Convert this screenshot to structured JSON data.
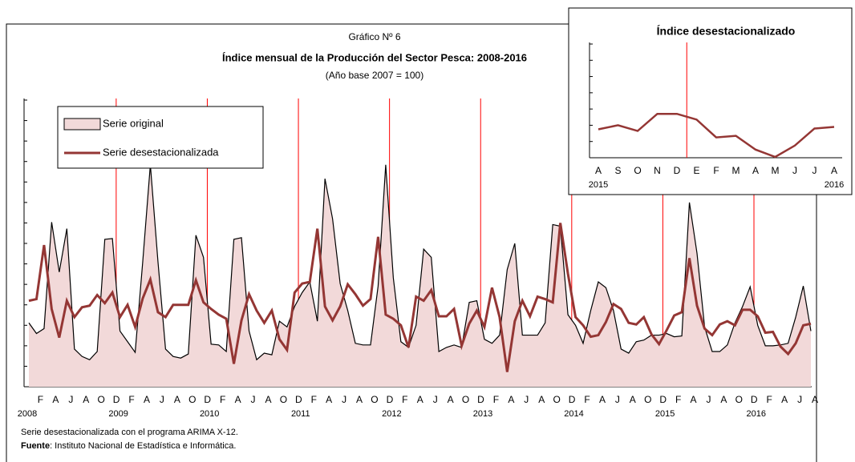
{
  "chart_data": [
    {
      "type": "line",
      "chart_label": "Gráfico Nº 6",
      "title": "Índice mensual de la Producción del Sector Pesca: 2008-2016",
      "subtitle": "(Año base  2007 = 100)",
      "categories": [
        null,
        "F",
        null,
        "A",
        null,
        "J",
        null,
        "A",
        null,
        "O",
        null,
        "D",
        null,
        "F",
        null,
        "A",
        null,
        "J",
        null,
        "A",
        null,
        "O",
        null,
        "D",
        null,
        "F",
        null,
        "A",
        null,
        "J",
        null,
        "A",
        null,
        "O",
        null,
        "D",
        null,
        "F",
        null,
        "A",
        null,
        "J",
        null,
        "A",
        null,
        "O",
        null,
        "D",
        null,
        "F",
        null,
        "A",
        null,
        "J",
        null,
        "A",
        null,
        "O",
        null,
        "D",
        null,
        "F",
        null,
        "A",
        null,
        "J",
        null,
        "A",
        null,
        "O",
        null,
        "D",
        null,
        "F",
        null,
        "A",
        null,
        "J",
        null,
        "A",
        null,
        "O",
        null,
        "D",
        null,
        "F",
        null,
        "A",
        null,
        "J",
        null,
        "A",
        null,
        "O",
        null,
        "D",
        null,
        "F",
        null,
        "A",
        null,
        "J",
        null,
        "A"
      ],
      "years": [
        "2008",
        "2009",
        "2010",
        "2011",
        "2012",
        "2013",
        "2014",
        "2015",
        "2016"
      ],
      "series": [
        {
          "name": "Serie original",
          "color": "#f2d9d9",
          "line_color": "#000000",
          "values": [
            78,
            65,
            71,
            201,
            140,
            193,
            46,
            37,
            33,
            43,
            180,
            181,
            68,
            55,
            42,
            153,
            271,
            153,
            46,
            37,
            35,
            40,
            185,
            158,
            52,
            51,
            43,
            180,
            182,
            68,
            33,
            41,
            39,
            80,
            73,
            98,
            115,
            128,
            80,
            254,
            205,
            126,
            93,
            53,
            51,
            51,
            123,
            271,
            133,
            55,
            48,
            75,
            168,
            158,
            43,
            48,
            51,
            48,
            103,
            105,
            58,
            53,
            63,
            143,
            175,
            63,
            63,
            63,
            78,
            198,
            196,
            88,
            75,
            53,
            93,
            128,
            121,
            93,
            46,
            41,
            55,
            57,
            63,
            63,
            65,
            61,
            62,
            225,
            163,
            73,
            43,
            43,
            51,
            78,
            98,
            122,
            75,
            50,
            50,
            51,
            53,
            85,
            123,
            68
          ]
        },
        {
          "name": "Serie desestacionalizada",
          "color": "#943634",
          "values": [
            105,
            107,
            173,
            95,
            60,
            105,
            85,
            97,
            99,
            112,
            102,
            115,
            85,
            100,
            73,
            108,
            131,
            91,
            85,
            100,
            100,
            100,
            130,
            103,
            95,
            88,
            83,
            28,
            81,
            113,
            93,
            78,
            93,
            58,
            45,
            115,
            126,
            128,
            193,
            98,
            81,
            98,
            125,
            113,
            99,
            107,
            183,
            88,
            83,
            75,
            48,
            110,
            105,
            118,
            86,
            86,
            95,
            50,
            77,
            93,
            73,
            121,
            85,
            18,
            80,
            105,
            86,
            110,
            107,
            103,
            200,
            138,
            85,
            75,
            61,
            63,
            79,
            101,
            95,
            78,
            76,
            85,
            64,
            52,
            69,
            87,
            91,
            157,
            99,
            71,
            63,
            76,
            80,
            75,
            94,
            94,
            86,
            66,
            67,
            49,
            40,
            53,
            75,
            77
          ]
        }
      ],
      "year_line_color": "#ff0000",
      "ylim": [
        0,
        350
      ],
      "yticks": [
        0,
        25,
        50,
        75,
        100,
        125,
        150,
        175,
        200,
        225,
        250,
        275,
        300,
        325,
        350
      ]
    },
    {
      "type": "line",
      "title": "Índice desestacionalizado",
      "categories": [
        "A",
        "S",
        "O",
        "N",
        "D",
        "E",
        "F",
        "M",
        "A",
        "M",
        "J",
        "J",
        "A"
      ],
      "years": [
        "2015",
        "2016"
      ],
      "series": [
        {
          "name": "Serie desestacionalizada",
          "color": "#943634",
          "values": [
            35,
            40,
            33,
            54,
            54,
            47,
            25,
            27,
            10,
            1,
            15,
            36,
            38
          ]
        }
      ],
      "year_line_color": "#ff0000",
      "ylim": [
        0,
        140
      ],
      "yticks": [
        0,
        20,
        40,
        60,
        80,
        100,
        120,
        140
      ]
    }
  ],
  "notes": {
    "text": "Serie desestacionalizada  con el programa  ARIMA  X-12.",
    "source_label": "Fuente",
    "source_text": ": Instituto Nacional de Estadística e Informática."
  }
}
